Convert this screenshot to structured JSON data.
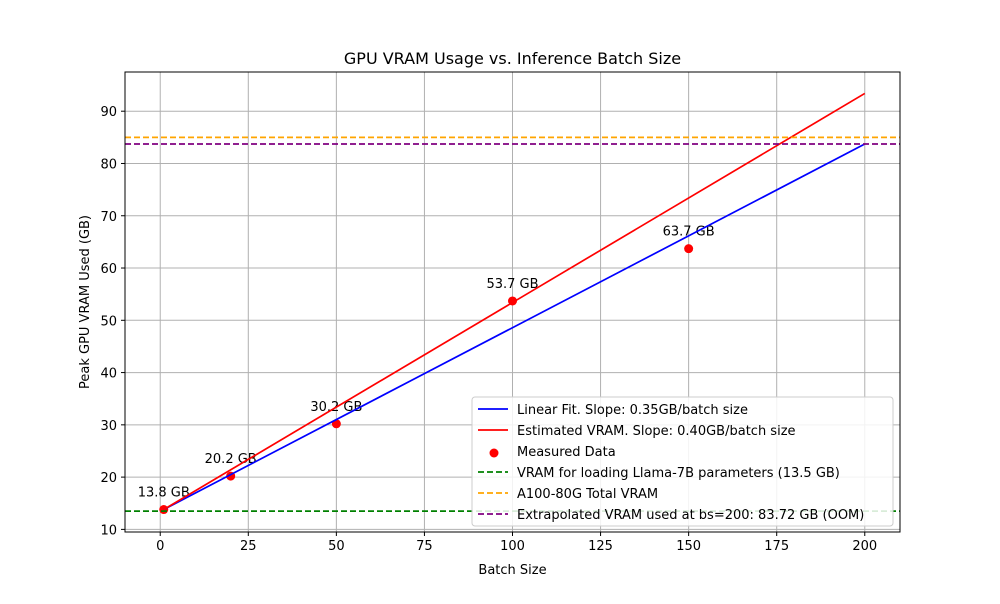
{
  "chart_data": {
    "type": "line",
    "title": "GPU VRAM Usage vs. Inference Batch Size",
    "xlabel": "Batch Size",
    "ylabel": "Peak GPU VRAM Used (GB)",
    "xlim": [
      -10,
      210
    ],
    "ylim": [
      9.5,
      97.5
    ],
    "xticks": [
      0,
      25,
      50,
      75,
      100,
      125,
      150,
      175,
      200
    ],
    "yticks": [
      10,
      20,
      30,
      40,
      50,
      60,
      70,
      80,
      90
    ],
    "grid": true,
    "legend_position": "lower-right",
    "series": [
      {
        "name": "Linear Fit. Slope: 0.35GB/batch size",
        "kind": "line",
        "color": "#0000ff",
        "x": [
          1,
          200
        ],
        "y": [
          13.8,
          83.72
        ]
      },
      {
        "name": "Estimated VRAM. Slope: 0.40GB/batch size",
        "kind": "line",
        "color": "#ff0000",
        "x": [
          1,
          200
        ],
        "y": [
          13.8,
          93.4
        ]
      },
      {
        "name": "Measured Data",
        "kind": "scatter",
        "color": "#ff0000",
        "x": [
          1,
          20,
          50,
          100,
          150
        ],
        "y": [
          13.8,
          20.2,
          30.2,
          53.7,
          63.7
        ],
        "labels": [
          "13.8 GB",
          "20.2 GB",
          "30.2 GB",
          "53.7 GB",
          "63.7 GB"
        ]
      },
      {
        "name": "VRAM for loading Llama-7B parameters (13.5 GB)",
        "kind": "hline",
        "color": "#008000",
        "y": 13.5
      },
      {
        "name": "A100-80G Total VRAM",
        "kind": "hline",
        "color": "#ffa500",
        "y": 85
      },
      {
        "name": "Extrapolated VRAM used at bs=200: 83.72 GB (OOM)",
        "kind": "hline",
        "color": "#800080",
        "y": 83.72
      }
    ]
  }
}
